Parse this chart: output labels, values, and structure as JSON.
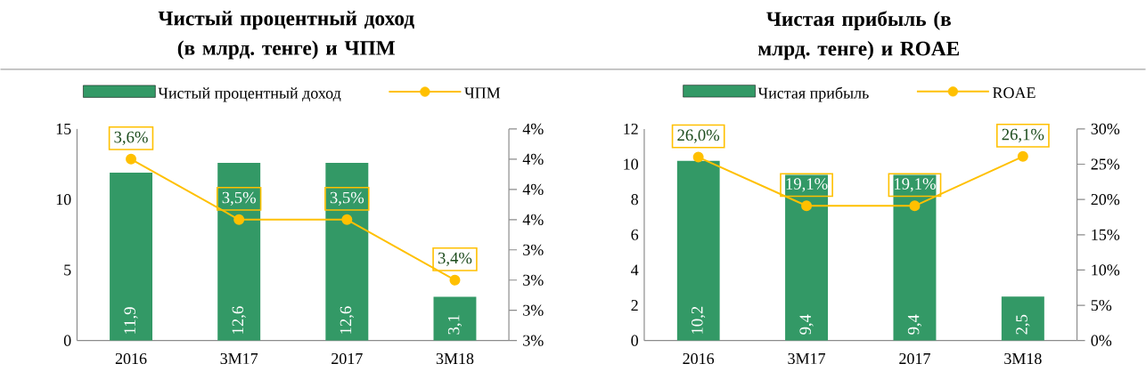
{
  "chart_data": [
    {
      "type": "bar",
      "title": "Чистый процентный доход (в млрд. тенге) и ЧПМ",
      "legend": "top",
      "categories": [
        "2016",
        "3M17",
        "2017",
        "3M18"
      ],
      "ylim": [
        0,
        15
      ],
      "yticks": [
        0,
        5,
        10,
        15
      ],
      "y2lim": [
        3.3,
        3.65
      ],
      "y2ticks": [
        {
          "value": 3.3,
          "label": "3%"
        },
        {
          "value": 3.35,
          "label": "3%"
        },
        {
          "value": 3.4,
          "label": "3%"
        },
        {
          "value": 3.45,
          "label": "3%"
        },
        {
          "value": 3.5,
          "label": "4%"
        },
        {
          "value": 3.55,
          "label": "4%"
        },
        {
          "value": 3.6,
          "label": "4%"
        },
        {
          "value": 3.65,
          "label": "4%"
        }
      ],
      "series": [
        {
          "name": "Чистый процентный доход",
          "type": "bar",
          "color": "#339966",
          "values": [
            11.9,
            12.6,
            12.6,
            3.1
          ],
          "value_labels": [
            "11,9",
            "12,6",
            "12,6",
            "3,1"
          ]
        },
        {
          "name": "ЧПМ",
          "type": "line",
          "axis": "y2",
          "marker": "circle",
          "color": "#ffc000",
          "values": [
            3.6,
            3.5,
            3.5,
            3.4
          ],
          "value_labels": [
            "3,6%",
            "3,5%",
            "3,5%",
            "3,4%"
          ]
        }
      ]
    },
    {
      "type": "bar",
      "title": "Чистая прибыль (в млрд. тенге) и ROAE",
      "legend": "top",
      "categories": [
        "2016",
        "3M17",
        "2017",
        "3M18"
      ],
      "ylim": [
        0,
        12
      ],
      "yticks": [
        0,
        2,
        4,
        6,
        8,
        10,
        12
      ],
      "y2lim": [
        0,
        30
      ],
      "y2ticks": [
        {
          "value": 0,
          "label": "0%"
        },
        {
          "value": 5,
          "label": "5%"
        },
        {
          "value": 10,
          "label": "10%"
        },
        {
          "value": 15,
          "label": "15%"
        },
        {
          "value": 20,
          "label": "20%"
        },
        {
          "value": 25,
          "label": "25%"
        },
        {
          "value": 30,
          "label": "30%"
        }
      ],
      "series": [
        {
          "name": "Чистая прибыль",
          "type": "bar",
          "color": "#339966",
          "values": [
            10.2,
            9.4,
            9.4,
            2.5
          ],
          "value_labels": [
            "10,2",
            "9,4",
            "9,4",
            "2,5"
          ]
        },
        {
          "name": "ROAE",
          "type": "line",
          "axis": "y2",
          "marker": "circle",
          "color": "#ffc000",
          "values": [
            26.0,
            19.1,
            19.1,
            26.1
          ],
          "value_labels": [
            "26,0%",
            "19,1%",
            "19,1%",
            "26,1%"
          ]
        }
      ]
    }
  ]
}
